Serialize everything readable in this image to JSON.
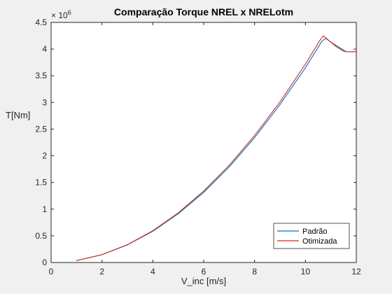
{
  "chart_data": {
    "type": "line",
    "title": "Comparação Torque NREL x NRELotm",
    "xlabel": "V_inc [m/s]",
    "ylabel": "T[Nm]",
    "xlim": [
      0,
      12
    ],
    "ylim": [
      0,
      4.5
    ],
    "y_multiplier_label": "× 10",
    "y_multiplier_exponent": "6",
    "x_ticks": [
      "0",
      "2",
      "4",
      "6",
      "8",
      "10",
      "12"
    ],
    "y_ticks": [
      "0",
      "0.5",
      "1",
      "1.5",
      "2",
      "2.5",
      "3",
      "3.5",
      "4",
      "4.5"
    ],
    "grid": false,
    "legend_position": "bottom-right",
    "series": [
      {
        "name": "Padrão",
        "color": "#0072bd",
        "x": [
          1,
          2,
          3,
          4,
          5,
          6,
          7,
          8,
          9,
          10,
          10.65,
          10.8,
          11,
          11.3,
          11.6,
          12
        ],
        "y": [
          0.035,
          0.145,
          0.33,
          0.585,
          0.915,
          1.315,
          1.79,
          2.34,
          2.96,
          3.65,
          4.15,
          4.2,
          4.13,
          4.04,
          3.95,
          3.95
        ]
      },
      {
        "name": "Otimizada",
        "color": "#d62728",
        "x": [
          1,
          2,
          3,
          4,
          5,
          6,
          7,
          8,
          9,
          10,
          10.55,
          10.7,
          10.9,
          11.2,
          11.5,
          11.6,
          12
        ],
        "y": [
          0.036,
          0.147,
          0.335,
          0.595,
          0.93,
          1.34,
          1.82,
          2.38,
          3.01,
          3.72,
          4.15,
          4.25,
          4.17,
          4.05,
          3.96,
          3.95,
          3.95
        ]
      }
    ]
  }
}
